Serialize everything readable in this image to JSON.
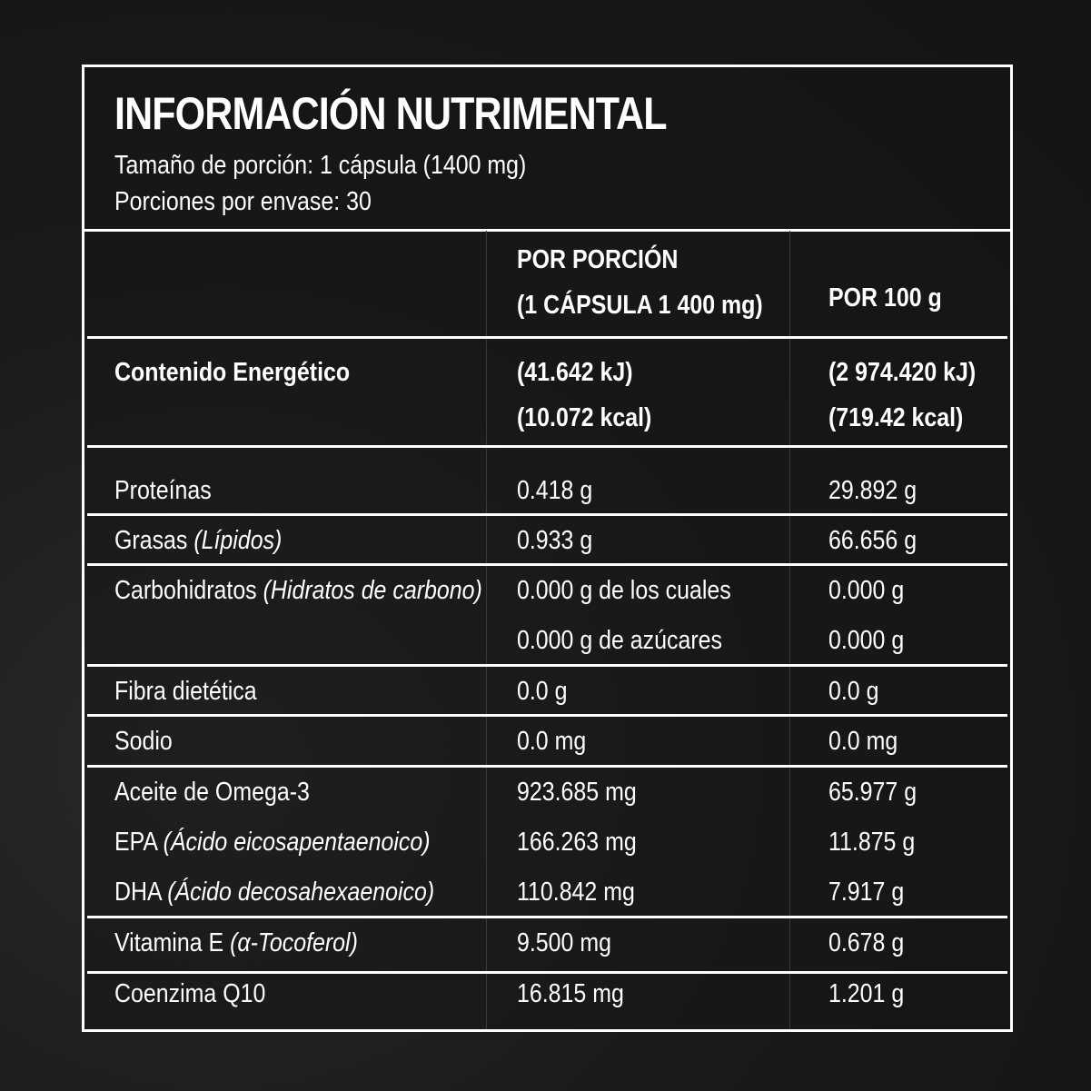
{
  "header": {
    "title": "INFORMACIÓN NUTRIMENTAL",
    "serving_size": "Tamaño de porción: 1 cápsula (1400 mg)",
    "servings_per_container": "Porciones por envase: 30"
  },
  "columns": {
    "per_serving_line1": "POR PORCIÓN",
    "per_serving_line2": "(1 CÁPSULA 1 400 mg)",
    "per_100g": "POR 100 g"
  },
  "energy": {
    "label": "Contenido Energético",
    "serving_kj": "(41.642 kJ)",
    "serving_kcal": "(10.072 kcal)",
    "per100_kj": "(2 974.420 kJ)",
    "per100_kcal": "(719.42 kcal)"
  },
  "rows": {
    "proteinas": {
      "label": "Proteínas",
      "serving": "0.418 g",
      "per100": "29.892 g"
    },
    "grasas": {
      "label": "Grasas ",
      "label_italic": "(Lípidos)",
      "serving": "0.933 g",
      "per100": "66.656 g"
    },
    "carbohidratos": {
      "label": "Carbohidratos ",
      "label_italic": "(Hidratos de carbono)",
      "serving": "0.000 g de los cuales",
      "per100": "0.000 g"
    },
    "azucares": {
      "serving": "0.000 g de azúcares",
      "per100": "0.000 g"
    },
    "fibra": {
      "label": "Fibra dietética",
      "serving": "0.0 g",
      "per100": "0.0 g"
    },
    "sodio": {
      "label": "Sodio",
      "serving": "0.0 mg",
      "per100": "0.0 mg"
    },
    "omega3": {
      "label": "Aceite de Omega-3",
      "serving": "923.685 mg",
      "per100": "65.977 g"
    },
    "epa": {
      "label": "EPA ",
      "label_italic": "(Ácido eicosapentaenoico)",
      "serving": "166.263 mg",
      "per100": "11.875 g"
    },
    "dha": {
      "label": "DHA ",
      "label_italic": "(Ácido decosahexaenoico)",
      "serving": "110.842 mg",
      "per100": "7.917 g"
    },
    "vitamina_e": {
      "label": "Vitamina E ",
      "label_italic": "(α-Tocoferol)",
      "serving": "9.500 mg",
      "per100": "0.678 g"
    },
    "coq10": {
      "label": "Coenzima Q10",
      "serving": "16.815 mg",
      "per100": "1.201 g"
    }
  }
}
